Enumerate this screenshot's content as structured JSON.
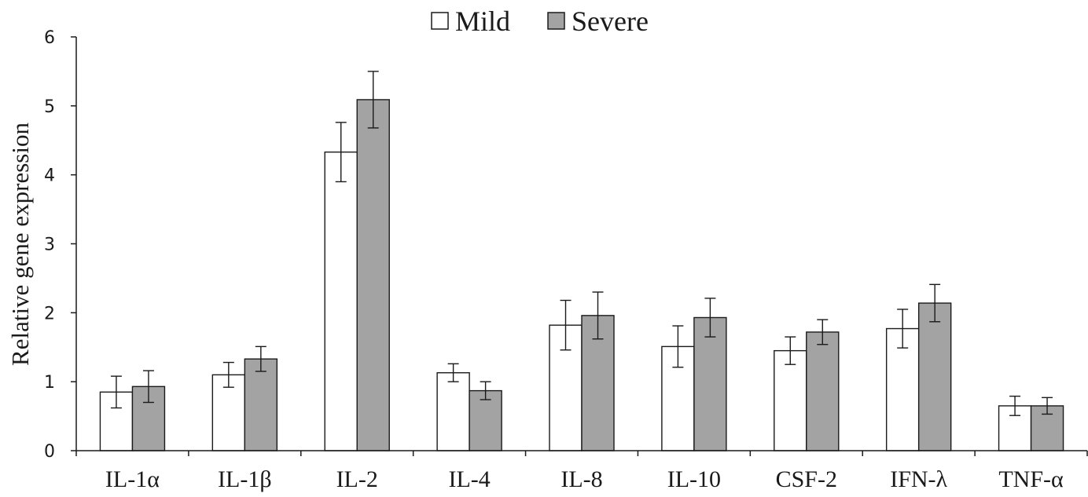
{
  "chart_data": {
    "type": "bar",
    "title": "",
    "xlabel": "",
    "ylabel": "Relative gene expression",
    "ylim": [
      0,
      6
    ],
    "yticks": [
      "0",
      "1",
      "2",
      "3",
      "4",
      "5",
      "6"
    ],
    "categories": [
      "IL-1α",
      "IL-1β",
      "IL-2",
      "IL-4",
      "IL-8",
      "IL-10",
      "CSF-2",
      "IFN-λ",
      "TNF-α"
    ],
    "legend_position": "top-center",
    "grid": false,
    "series": [
      {
        "name": "Mild",
        "color": "#ffffff",
        "values": [
          0.85,
          1.1,
          4.33,
          1.13,
          1.82,
          1.51,
          1.45,
          1.77,
          0.65
        ],
        "errors": [
          0.23,
          0.18,
          0.43,
          0.13,
          0.36,
          0.3,
          0.2,
          0.28,
          0.14
        ]
      },
      {
        "name": "Severe",
        "color": "#a3a3a3",
        "values": [
          0.93,
          1.33,
          5.09,
          0.87,
          1.96,
          1.93,
          1.72,
          2.14,
          0.65
        ],
        "errors": [
          0.23,
          0.18,
          0.41,
          0.13,
          0.34,
          0.28,
          0.18,
          0.27,
          0.12
        ]
      }
    ]
  }
}
